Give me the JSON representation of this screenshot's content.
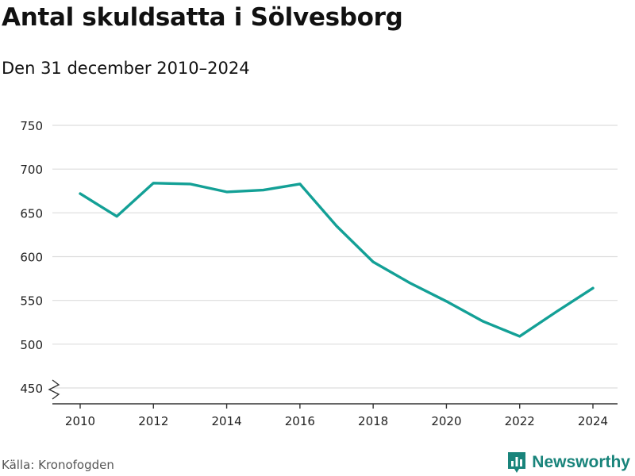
{
  "header": {
    "title": "Antal skuldsatta i Sölvesborg",
    "subtitle": "Den 31 december 2010–2024"
  },
  "footer": {
    "source": "Källa: Kronofogden",
    "brand": "Newsworthy",
    "brand_icon": "bar-chart-logo-icon"
  },
  "colors": {
    "line": "#13a096",
    "grid": "#dddddd",
    "axis": "#333333",
    "brand": "#19847b"
  },
  "chart_data": {
    "type": "line",
    "title": "Antal skuldsatta i Sölvesborg",
    "subtitle": "Den 31 december 2010–2024",
    "xlabel": "",
    "ylabel": "",
    "x": [
      2010,
      2011,
      2012,
      2013,
      2014,
      2015,
      2016,
      2017,
      2018,
      2019,
      2020,
      2021,
      2022,
      2023,
      2024
    ],
    "values": [
      672,
      646,
      684,
      683,
      674,
      676,
      683,
      635,
      594,
      570,
      549,
      526,
      509,
      537,
      564
    ],
    "xticks": [
      "2010",
      "2012",
      "2014",
      "2016",
      "2018",
      "2020",
      "2022",
      "2024"
    ],
    "yticks": [
      "450",
      "500",
      "550",
      "600",
      "650",
      "700",
      "750"
    ],
    "ylim": [
      450,
      750
    ],
    "xlim": [
      2010,
      2024
    ],
    "grid": true,
    "y_axis_break": true
  }
}
